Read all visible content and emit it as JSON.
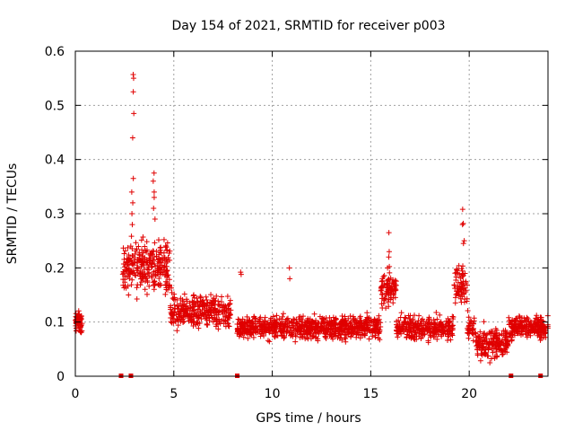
{
  "chart_data": {
    "type": "scatter",
    "title": "Day 154 of 2021, SRMTID for receiver p003",
    "xlabel": "GPS time / hours",
    "ylabel": "SRMTID / TECUs",
    "xlim": [
      0,
      24
    ],
    "ylim": [
      0,
      0.6
    ],
    "xticks": [
      0,
      5,
      10,
      15,
      20
    ],
    "yticks": [
      0,
      0.1,
      0.2,
      0.3,
      0.4,
      0.5,
      0.6
    ],
    "xtick_labels": [
      "0",
      "5",
      "10",
      "15",
      "20"
    ],
    "ytick_labels": [
      "0",
      "0.1",
      "0.2",
      "0.3",
      "0.4",
      "0.5",
      "0.6"
    ],
    "grid": true,
    "marker": "plus",
    "color": "#e00000",
    "series": [
      {
        "name": "SRMTID",
        "segments": [
          {
            "x_start": 0.0,
            "x_end": 0.35,
            "base": 0.1,
            "spread": 0.03,
            "density": 60
          },
          {
            "x_start": 2.4,
            "x_end": 7.9,
            "base": 0.12,
            "spread": 0.05,
            "density": 600
          },
          {
            "x_start": 8.2,
            "x_end": 24.0,
            "base": 0.09,
            "spread": 0.035,
            "density": 1700
          }
        ],
        "features": [
          {
            "x": 2.95,
            "y": [
              0.44,
              0.485,
              0.525,
              0.55,
              0.557
            ]
          },
          {
            "x": 2.9,
            "y": [
              0.365,
              0.34,
              0.32,
              0.3,
              0.28
            ]
          },
          {
            "x": 4.0,
            "y": [
              0.375,
              0.36,
              0.34,
              0.33,
              0.31,
              0.29
            ]
          },
          {
            "x": 15.9,
            "y": [
              0.265,
              0.23,
              0.22,
              0.2
            ]
          },
          {
            "x": 19.7,
            "y": [
              0.308,
              0.282,
              0.28,
              0.25,
              0.245
            ]
          },
          {
            "x": 10.9,
            "y": [
              0.2,
              0.18
            ]
          },
          {
            "x": 8.4,
            "y": [
              0.192,
              0.188
            ]
          }
        ],
        "hump_centers": [
          {
            "x_start": 2.4,
            "x_end": 4.8,
            "base": 0.2,
            "spread": 0.06
          },
          {
            "x_start": 15.5,
            "x_end": 16.3,
            "base": 0.16,
            "spread": 0.04
          },
          {
            "x_start": 19.2,
            "x_end": 19.9,
            "base": 0.17,
            "spread": 0.05
          },
          {
            "x_start": 20.3,
            "x_end": 22.0,
            "base": 0.06,
            "spread": 0.025
          }
        ]
      }
    ],
    "gap_markers_x": [
      2.3,
      2.8,
      8.2,
      22.1,
      23.6
    ]
  }
}
